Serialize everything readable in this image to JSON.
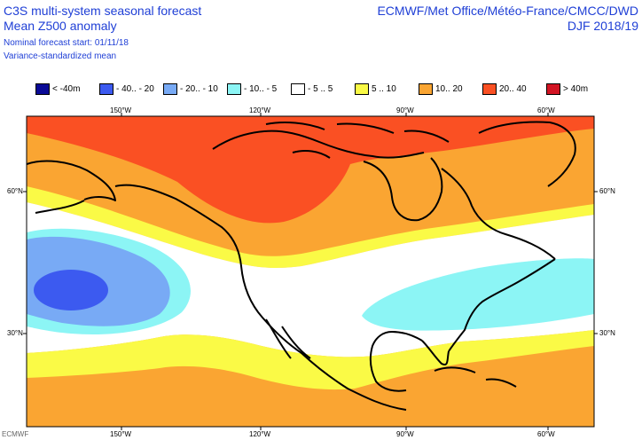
{
  "title": {
    "line1": "C3S multi-system seasonal forecast",
    "line2": "Mean Z500 anomaly",
    "line3": "Nominal forecast start: 01/11/18",
    "line4": "Variance-standardized mean"
  },
  "centres": "ECMWF/Met Office/Météo-France/CMCC/DWD",
  "season": "DJF 2018/19",
  "legend": [
    {
      "label": "< -40m",
      "color": "#0a0a96"
    },
    {
      "label": "- 40.. - 20",
      "color": "#3c5af0"
    },
    {
      "label": "- 20.. - 10",
      "color": "#78aaf5"
    },
    {
      "label": "- 10.. - 5",
      "color": "#8cf5f5"
    },
    {
      "label": "- 5 .. 5",
      "color": "#ffffff"
    },
    {
      "label": "5 .. 10",
      "color": "#fafa46"
    },
    {
      "label": "10.. 20",
      "color": "#faa532"
    },
    {
      "label": "20.. 40",
      "color": "#fa5023"
    },
    {
      "label": "> 40m",
      "color": "#d21423"
    }
  ],
  "lon_ticks": [
    "150°W",
    "120°W",
    "90°W",
    "60°W"
  ],
  "lat_ticks": [
    "60°N",
    "30°N"
  ],
  "footer": "ECMWF"
}
